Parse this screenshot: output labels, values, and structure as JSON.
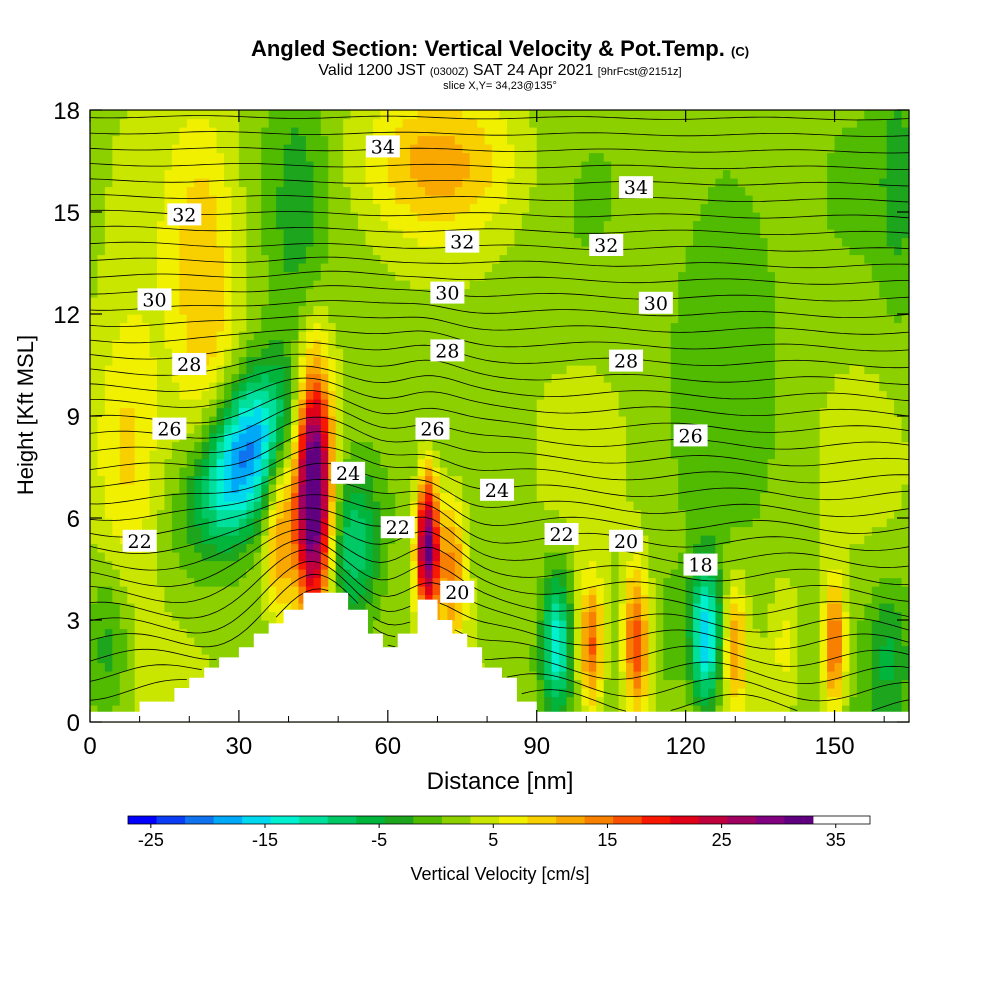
{
  "title": {
    "main": "Angled Section: Vertical Velocity & Pot.Temp.",
    "main_unit": "(C)",
    "valid_prefix": "Valid 1200 JST",
    "valid_utc": "(0300Z)",
    "valid_date": "SAT 24 Apr 2021",
    "forecast": "[9hrFcst@2151z]",
    "slice": "slice X,Y= 34,23@135°"
  },
  "chart_data": {
    "type": "heatmap",
    "xlabel": "Distance [nm]",
    "ylabel": "Height [Kft MSL]",
    "xlim": [
      0,
      165
    ],
    "ylim": [
      0,
      18
    ],
    "xticks": [
      0,
      30,
      60,
      90,
      120,
      150
    ],
    "yticks": [
      0,
      3,
      6,
      9,
      12,
      15,
      18
    ],
    "colorbar": {
      "label": "Vertical Velocity [cm/s]",
      "range": [
        -27,
        38
      ],
      "step": 2.5,
      "ticks": [
        -25,
        -15,
        -5,
        5,
        15,
        25,
        35
      ],
      "colors": [
        "#0000ff",
        "#0a3df5",
        "#0f73ef",
        "#00a8f8",
        "#00d8f0",
        "#00f0d0",
        "#00e09c",
        "#00c864",
        "#00b43c",
        "#1ea51e",
        "#50bb00",
        "#8cd000",
        "#c8e600",
        "#f0f000",
        "#f8d000",
        "#f8a800",
        "#f88000",
        "#f85000",
        "#f81800",
        "#e00018",
        "#c0003c",
        "#a00060",
        "#800080",
        "#600080"
      ]
    },
    "velocity_features": [
      {
        "x": 31,
        "y": 7.8,
        "value": -24,
        "sx": 6,
        "sy": 1.8,
        "tilt": 0.45
      },
      {
        "x": 45,
        "y": 6.8,
        "value": 34,
        "sx": 2.6,
        "sy": 2.6
      },
      {
        "x": 38,
        "y": 5.6,
        "value": 10,
        "sx": 2.0,
        "sy": 2.0
      },
      {
        "x": 53,
        "y": 5.3,
        "value": -12,
        "sx": 3.5,
        "sy": 1.6
      },
      {
        "x": 68,
        "y": 5.2,
        "value": 30,
        "sx": 1.6,
        "sy": 1.5
      },
      {
        "x": 73,
        "y": 4.6,
        "value": 12,
        "sx": 2.0,
        "sy": 1.6
      },
      {
        "x": 94,
        "y": 2.4,
        "value": -15,
        "sx": 2.0,
        "sy": 1.4
      },
      {
        "x": 101,
        "y": 2.2,
        "value": 15,
        "sx": 1.8,
        "sy": 1.4
      },
      {
        "x": 110,
        "y": 2.3,
        "value": 16,
        "sx": 1.8,
        "sy": 1.5
      },
      {
        "x": 117,
        "y": 2.4,
        "value": -3,
        "sx": 2.0,
        "sy": 1.5
      },
      {
        "x": 124,
        "y": 2.5,
        "value": -20,
        "sx": 2.2,
        "sy": 1.5
      },
      {
        "x": 130,
        "y": 2.3,
        "value": 10,
        "sx": 1.6,
        "sy": 1.3
      },
      {
        "x": 140,
        "y": 2.3,
        "value": 4,
        "sx": 2.0,
        "sy": 1.3
      },
      {
        "x": 150,
        "y": 2.2,
        "value": 15,
        "sx": 1.6,
        "sy": 1.4
      },
      {
        "x": 161,
        "y": 2.0,
        "value": -6,
        "sx": 3.0,
        "sy": 1.5
      },
      {
        "x": 4,
        "y": 2.3,
        "value": -6,
        "sx": 3.0,
        "sy": 1.6
      },
      {
        "x": 23,
        "y": 12.0,
        "value": 8,
        "sx": 5,
        "sy": 4
      },
      {
        "x": 8,
        "y": 8.0,
        "value": 8,
        "sx": 5,
        "sy": 3
      },
      {
        "x": 70,
        "y": 16.5,
        "value": 8,
        "sx": 12,
        "sy": 1.5
      },
      {
        "x": 42,
        "y": 15.0,
        "value": -4,
        "sx": 4,
        "sy": 3
      },
      {
        "x": 128,
        "y": 14.0,
        "value": -4,
        "sx": 8,
        "sy": 4
      },
      {
        "x": 163,
        "y": 16.0,
        "value": -4,
        "sx": 3,
        "sy": 3
      }
    ],
    "terrain": [
      [
        0,
        0.3
      ],
      [
        10,
        0.3
      ],
      [
        10,
        0.6
      ],
      [
        17,
        0.6
      ],
      [
        17,
        1.0
      ],
      [
        20,
        1.0
      ],
      [
        20,
        1.3
      ],
      [
        23,
        1.3
      ],
      [
        23,
        1.6
      ],
      [
        26,
        1.6
      ],
      [
        26,
        1.9
      ],
      [
        30,
        1.9
      ],
      [
        30,
        2.2
      ],
      [
        33,
        2.2
      ],
      [
        33,
        2.6
      ],
      [
        36,
        2.6
      ],
      [
        36,
        2.9
      ],
      [
        39,
        2.9
      ],
      [
        39,
        3.3
      ],
      [
        43,
        3.3
      ],
      [
        43,
        3.8
      ],
      [
        52,
        3.8
      ],
      [
        52,
        3.3
      ],
      [
        56,
        3.3
      ],
      [
        56,
        2.6
      ],
      [
        59,
        2.6
      ],
      [
        59,
        2.2
      ],
      [
        62,
        2.2
      ],
      [
        62,
        2.6
      ],
      [
        66,
        2.6
      ],
      [
        66,
        3.6
      ],
      [
        70,
        3.6
      ],
      [
        70,
        3.0
      ],
      [
        73,
        3.0
      ],
      [
        73,
        2.6
      ],
      [
        76,
        2.6
      ],
      [
        76,
        2.2
      ],
      [
        79,
        2.2
      ],
      [
        79,
        1.6
      ],
      [
        83,
        1.6
      ],
      [
        83,
        1.3
      ],
      [
        86,
        1.3
      ],
      [
        86,
        0.6
      ],
      [
        90,
        0.6
      ],
      [
        90,
        0.3
      ],
      [
        165,
        0.3
      ]
    ],
    "theta_levels": [
      {
        "value": 18,
        "labels": [
          [
            123,
            4.6
          ]
        ]
      },
      {
        "value": 20,
        "labels": [
          [
            108,
            5.3
          ],
          [
            74,
            3.8
          ]
        ]
      },
      {
        "value": 22,
        "labels": [
          [
            10,
            5.3
          ],
          [
            62,
            5.7
          ],
          [
            95,
            5.5
          ]
        ]
      },
      {
        "value": 24,
        "labels": [
          [
            52,
            7.3
          ],
          [
            82,
            6.8
          ]
        ]
      },
      {
        "value": 26,
        "labels": [
          [
            16,
            8.6
          ],
          [
            69,
            8.6
          ],
          [
            121,
            8.4
          ]
        ]
      },
      {
        "value": 28,
        "labels": [
          [
            20,
            10.5
          ],
          [
            72,
            10.9
          ],
          [
            108,
            10.6
          ]
        ]
      },
      {
        "value": 30,
        "labels": [
          [
            13,
            12.4
          ],
          [
            72,
            12.6
          ],
          [
            114,
            12.3
          ]
        ]
      },
      {
        "value": 32,
        "labels": [
          [
            19,
            14.9
          ],
          [
            75,
            14.1
          ],
          [
            104,
            14.0
          ]
        ]
      },
      {
        "value": 34,
        "labels": [
          [
            59,
            16.9
          ],
          [
            110,
            15.7
          ]
        ]
      }
    ]
  }
}
